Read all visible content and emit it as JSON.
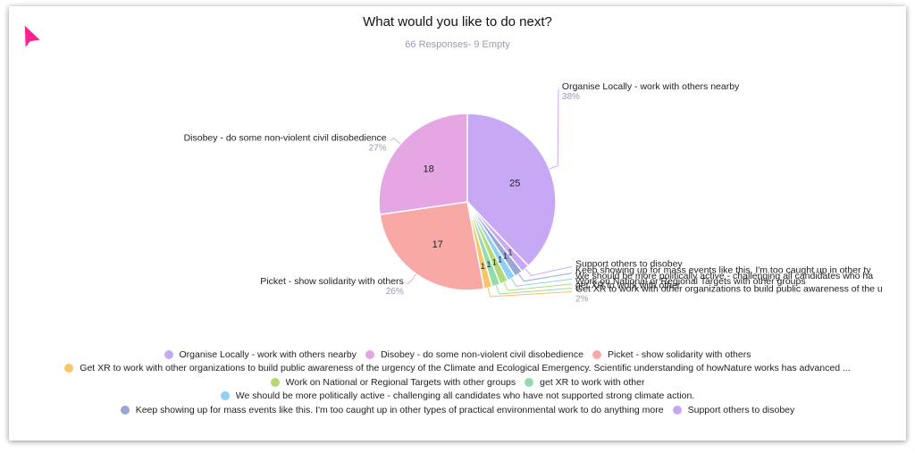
{
  "header": {
    "title": "What would you like to do next?",
    "subtitle": "66 Responses- 9 Empty"
  },
  "chart_data": {
    "type": "pie",
    "title": "What would you like to do next?",
    "subtitle": "66 Responses- 9 Empty",
    "slices": [
      {
        "label": "Organise Locally - work with others nearby",
        "value": 25,
        "percent": "38%",
        "color": "#c7a8f5",
        "callout": "Organise Locally - work with others nearby",
        "legend": "Organise Locally - work with others nearby"
      },
      {
        "label": "Support others to disobey",
        "value": 1,
        "percent": "",
        "color": "#c7a8f5",
        "callout": "Support others to disobey",
        "legend": "Support others to disobey"
      },
      {
        "label": "Keep showing up for mass events like this. I'm too caught up in other types of practical environmental work to do anything more",
        "value": 1,
        "percent": "",
        "color": "#97a8d6",
        "callout": "Keep showing up for mass events like this. I'm too caught up in other ty",
        "legend": "Keep showing up for mass events like this. I'm too caught up in other types of practical environmental work to do anything more"
      },
      {
        "label": "We should be more politically active - challenging all candidates who have not supported strong climate action.",
        "value": 1,
        "percent": "",
        "color": "#8fd0f5",
        "callout": "We should be more politically active - challenging all candidates who ha",
        "legend": "We should be more politically active - challenging all candidates who have not supported strong climate action."
      },
      {
        "label": "Work on National or Regional Targets with other groups",
        "value": 1,
        "percent": "",
        "color": "#b3da74",
        "callout": "Work on National or Regional Targets with other groups",
        "legend": "Work on National or Regional Targets with other groups"
      },
      {
        "label": "get XR to work with other",
        "value": 1,
        "percent": "",
        "color": "#93dcb0",
        "callout": "get XR to work with other",
        "legend": "get XR to work with other"
      },
      {
        "label": "Get XR to work with other organizations to build public awareness of the urgency of the Climate and Ecological Emergency.",
        "value": 1,
        "percent": "2%",
        "color": "#f9c56a",
        "callout": "Get XR to work with other organizations to build public awareness of the u",
        "legend": "Get XR to work with other organizations to build public awareness of the urgency of the Climate and Ecological Emergency. Scientific understanding of howNature works has advanced ..."
      },
      {
        "label": "Picket - show solidarity with others",
        "value": 17,
        "percent": "26%",
        "color": "#f8a9a6",
        "callout": "Picket - show solidarity with others",
        "legend": "Picket - show solidarity with others"
      },
      {
        "label": "Disobey - do some non-violent civil disobedience",
        "value": 18,
        "percent": "27%",
        "color": "#e6a6e4",
        "callout": "Disobey - do some non-violent civil disobedience",
        "legend": "Disobey - do some non-violent civil disobedience"
      }
    ],
    "legend_rows": [
      [
        0,
        8,
        7
      ],
      [
        6
      ],
      [
        4,
        5
      ],
      [
        3
      ],
      [
        2,
        1
      ]
    ],
    "legend_placement": "bottom",
    "colors": {
      "label_percent": "#9a9ab4",
      "slice_border": "#ffffff"
    }
  }
}
